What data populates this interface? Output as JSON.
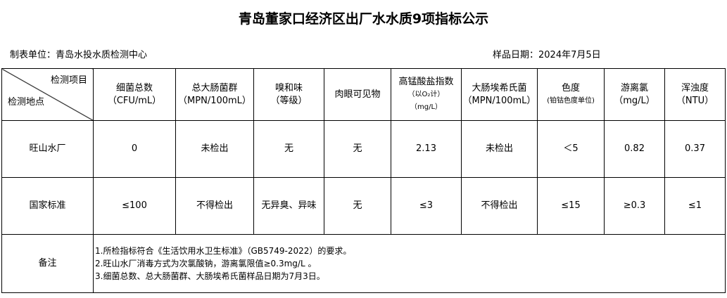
{
  "title": "青岛董家口经济区出厂水水质9项指标公示",
  "unit": "制表单位：青岛水投水质检测中心",
  "sample_date": "样品日期：2024年7月5日",
  "corner": {
    "top": "检测项目",
    "bottom": "检测地点"
  },
  "headers": [
    {
      "l1": "细菌总数",
      "l2": "（CFU/mL）"
    },
    {
      "l1": "总大肠菌群",
      "l2": "（MPN/100mL）"
    },
    {
      "l1": "嗅和味",
      "l2": "（等级）"
    },
    {
      "l1": "肉眼可见物",
      "l2": ""
    },
    {
      "l1": "高锰酸盐指数",
      "l2": "（以O₂计）",
      "l3": "（mg/L）"
    },
    {
      "l1": "大肠埃希氏菌",
      "l2": "（MPN/100mL）"
    },
    {
      "l1": "色度",
      "l2": "(铂钴色度单位)"
    },
    {
      "l1": "游离氯",
      "l2": "（mg/L）"
    },
    {
      "l1": "浑浊度",
      "l2": "（NTU）"
    }
  ],
  "rows": [
    {
      "site": "旺山水厂",
      "values": [
        "0",
        "未检出",
        "无",
        "无",
        "2.13",
        "未检出",
        "＜5",
        "0.82",
        "0.37"
      ]
    },
    {
      "site": "国家标准",
      "values": [
        "≤100",
        "不得检出",
        "无异臭、异味",
        "无",
        "≤3",
        "不得检出",
        "≤15",
        "≥0.3",
        "≤1"
      ]
    }
  ],
  "notes": {
    "label": "备注",
    "lines": [
      "1.所检指标符合《生活饮用水卫生标准》（GB5749-2022）的要求。",
      "2.旺山水厂消毒方式为次氯酸钠，游离氯限值≥0.3mg/L 。",
      "3.细菌总数、总大肠菌群、大肠埃希氏菌样品日期为7月3日。"
    ]
  }
}
